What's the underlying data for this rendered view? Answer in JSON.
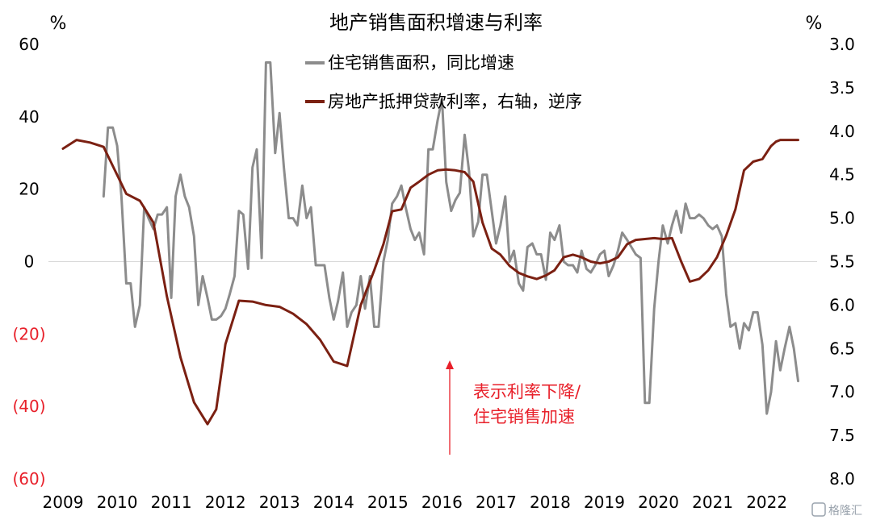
{
  "chart_data": {
    "type": "line",
    "title": "地产销售面积增速与利率",
    "left_axis": {
      "unit": "%",
      "range": [
        -60,
        60
      ],
      "ticks": [
        60,
        40,
        20,
        0,
        -20,
        -40,
        -60
      ],
      "tick_labels": [
        "60",
        "40",
        "20",
        "0",
        "(20)",
        "(40)",
        "(60)"
      ]
    },
    "right_axis": {
      "unit": "%",
      "range": [
        3.0,
        8.0
      ],
      "inverted": true,
      "ticks": [
        3.0,
        3.5,
        4.0,
        4.5,
        5.0,
        5.5,
        6.0,
        6.5,
        7.0,
        7.5,
        8.0
      ],
      "tick_labels": [
        "3.0",
        "3.5",
        "4.0",
        "4.5",
        "5.0",
        "5.5",
        "6.0",
        "6.5",
        "7.0",
        "7.5",
        "8.0"
      ]
    },
    "x_axis": {
      "range": [
        2009.0,
        2022.9
      ],
      "ticks": [
        2009,
        2010,
        2011,
        2012,
        2013,
        2014,
        2015,
        2016,
        2017,
        2018,
        2019,
        2020,
        2021,
        2022
      ],
      "tick_labels": [
        "2009",
        "2010",
        "2011",
        "2012",
        "2013",
        "2014",
        "2015",
        "2016",
        "2017",
        "2018",
        "2019",
        "2020",
        "2021",
        "2022"
      ]
    },
    "grid": false,
    "zero_line": true,
    "legend_position": "top-center",
    "series": [
      {
        "name": "住宅销售面积，同比增速",
        "axis": "left",
        "color": "#8c8c8c",
        "x": [
          2009.75,
          2009.83,
          2009.92,
          2010.0,
          2010.08,
          2010.17,
          2010.25,
          2010.33,
          2010.42,
          2010.5,
          2010.58,
          2010.67,
          2010.75,
          2010.83,
          2010.92,
          2011.0,
          2011.08,
          2011.17,
          2011.25,
          2011.33,
          2011.42,
          2011.5,
          2011.58,
          2011.67,
          2011.75,
          2011.83,
          2011.92,
          2012.0,
          2012.08,
          2012.17,
          2012.25,
          2012.33,
          2012.42,
          2012.5,
          2012.58,
          2012.67,
          2012.75,
          2012.83,
          2012.92,
          2013.0,
          2013.08,
          2013.17,
          2013.25,
          2013.33,
          2013.42,
          2013.5,
          2013.58,
          2013.67,
          2013.75,
          2013.83,
          2013.92,
          2014.0,
          2014.08,
          2014.17,
          2014.25,
          2014.33,
          2014.42,
          2014.5,
          2014.58,
          2014.67,
          2014.75,
          2014.83,
          2014.92,
          2015.0,
          2015.08,
          2015.17,
          2015.25,
          2015.33,
          2015.42,
          2015.5,
          2015.58,
          2015.67,
          2015.75,
          2015.83,
          2015.92,
          2016.0,
          2016.08,
          2016.17,
          2016.25,
          2016.33,
          2016.42,
          2016.5,
          2016.58,
          2016.67,
          2016.75,
          2016.83,
          2016.92,
          2017.0,
          2017.08,
          2017.17,
          2017.25,
          2017.33,
          2017.42,
          2017.5,
          2017.58,
          2017.67,
          2017.75,
          2017.83,
          2017.92,
          2018.0,
          2018.08,
          2018.17,
          2018.25,
          2018.33,
          2018.42,
          2018.5,
          2018.58,
          2018.67,
          2018.75,
          2018.83,
          2018.92,
          2019.0,
          2019.08,
          2019.17,
          2019.25,
          2019.33,
          2019.42,
          2019.5,
          2019.58,
          2019.67,
          2019.75,
          2019.83,
          2019.92,
          2020.0,
          2020.08,
          2020.17,
          2020.25,
          2020.33,
          2020.42,
          2020.5,
          2020.58,
          2020.67,
          2020.75,
          2020.83,
          2020.92,
          2021.0,
          2021.08,
          2021.17,
          2021.25,
          2021.33,
          2021.42,
          2021.5,
          2021.58,
          2021.67,
          2021.75,
          2021.83,
          2021.92,
          2022.0,
          2022.08,
          2022.17,
          2022.25,
          2022.33,
          2022.42,
          2022.5,
          2022.58
        ],
        "values": [
          18,
          37,
          37,
          32,
          18,
          -6,
          -6,
          -18,
          -12,
          15,
          12,
          9,
          13,
          13,
          15,
          -10,
          18,
          24,
          18,
          15,
          7,
          -12,
          -4,
          -10,
          -16,
          -16,
          -15,
          -13,
          -9,
          -4,
          14,
          13,
          -2,
          26,
          31,
          1,
          55,
          55,
          30,
          41,
          26,
          12,
          12,
          10,
          21,
          12,
          15,
          -1,
          -1,
          -1,
          -10,
          -16,
          -11,
          -3,
          -18,
          -14,
          -12,
          -4,
          -13,
          -4,
          -18,
          -18,
          0,
          6,
          16,
          18,
          21,
          15,
          9,
          6,
          8,
          2,
          31,
          31,
          39,
          45,
          22,
          14,
          17,
          19,
          35,
          25,
          7,
          11,
          24,
          24,
          14,
          5,
          10,
          18,
          0,
          3,
          -6,
          -8,
          4,
          5,
          2,
          2,
          -5,
          8,
          6,
          10,
          0,
          -1,
          -1,
          -3,
          3,
          -2,
          -3,
          -1,
          2,
          3,
          -4,
          -1,
          3,
          8,
          6,
          4,
          2,
          1,
          -39,
          -39,
          -13,
          0,
          10,
          5,
          10,
          14,
          8,
          16,
          12,
          12,
          13,
          12,
          10,
          9,
          10,
          7,
          -9,
          -18,
          -17,
          -24,
          -17,
          -19,
          -14,
          -14,
          -23,
          -42,
          -36,
          -22,
          -30,
          -24,
          -18,
          -24,
          -33
        ]
      },
      {
        "name": "房地产抵押贷款利率，右轴，逆序",
        "axis": "right",
        "color": "#7b2012",
        "x": [
          2009.0,
          2009.25,
          2009.5,
          2009.75,
          2009.92,
          2010.17,
          2010.42,
          2010.67,
          2010.92,
          2011.17,
          2011.42,
          2011.67,
          2011.83,
          2012.0,
          2012.25,
          2012.5,
          2012.75,
          2013.0,
          2013.25,
          2013.5,
          2013.75,
          2014.0,
          2014.25,
          2014.5,
          2014.75,
          2014.92,
          2015.08,
          2015.25,
          2015.42,
          2015.58,
          2015.75,
          2015.92,
          2016.08,
          2016.25,
          2016.42,
          2016.58,
          2016.75,
          2016.92,
          2017.08,
          2017.25,
          2017.42,
          2017.58,
          2017.75,
          2017.92,
          2018.08,
          2018.25,
          2018.42,
          2018.58,
          2018.75,
          2018.92,
          2019.08,
          2019.25,
          2019.42,
          2019.58,
          2019.75,
          2019.92,
          2020.08,
          2020.25,
          2020.42,
          2020.58,
          2020.75,
          2020.92,
          2021.08,
          2021.25,
          2021.42,
          2021.58,
          2021.75,
          2021.92,
          2022.08,
          2022.17,
          2022.25,
          2022.33,
          2022.42,
          2022.5,
          2022.58
        ],
        "values": [
          4.2,
          4.1,
          4.13,
          4.18,
          4.4,
          4.72,
          4.8,
          5.05,
          5.9,
          6.6,
          7.12,
          7.37,
          7.2,
          6.45,
          5.95,
          5.96,
          6.0,
          6.02,
          6.1,
          6.22,
          6.4,
          6.65,
          6.7,
          6.0,
          5.6,
          5.3,
          4.92,
          4.9,
          4.65,
          4.58,
          4.5,
          4.45,
          4.44,
          4.45,
          4.47,
          4.58,
          5.05,
          5.35,
          5.42,
          5.55,
          5.63,
          5.67,
          5.7,
          5.66,
          5.6,
          5.45,
          5.42,
          5.45,
          5.5,
          5.52,
          5.5,
          5.45,
          5.3,
          5.25,
          5.24,
          5.23,
          5.24,
          5.23,
          5.5,
          5.73,
          5.7,
          5.6,
          5.45,
          5.2,
          4.9,
          4.45,
          4.35,
          4.32,
          4.17,
          4.12,
          4.1,
          4.1,
          4.1,
          4.1,
          4.1
        ]
      }
    ],
    "annotation": {
      "lines": [
        "表示利率下降/",
        "住宅销售加速"
      ],
      "arrow": "up",
      "arrow_color": "#e8202a"
    }
  },
  "watermark": {
    "text": "格隆汇"
  }
}
